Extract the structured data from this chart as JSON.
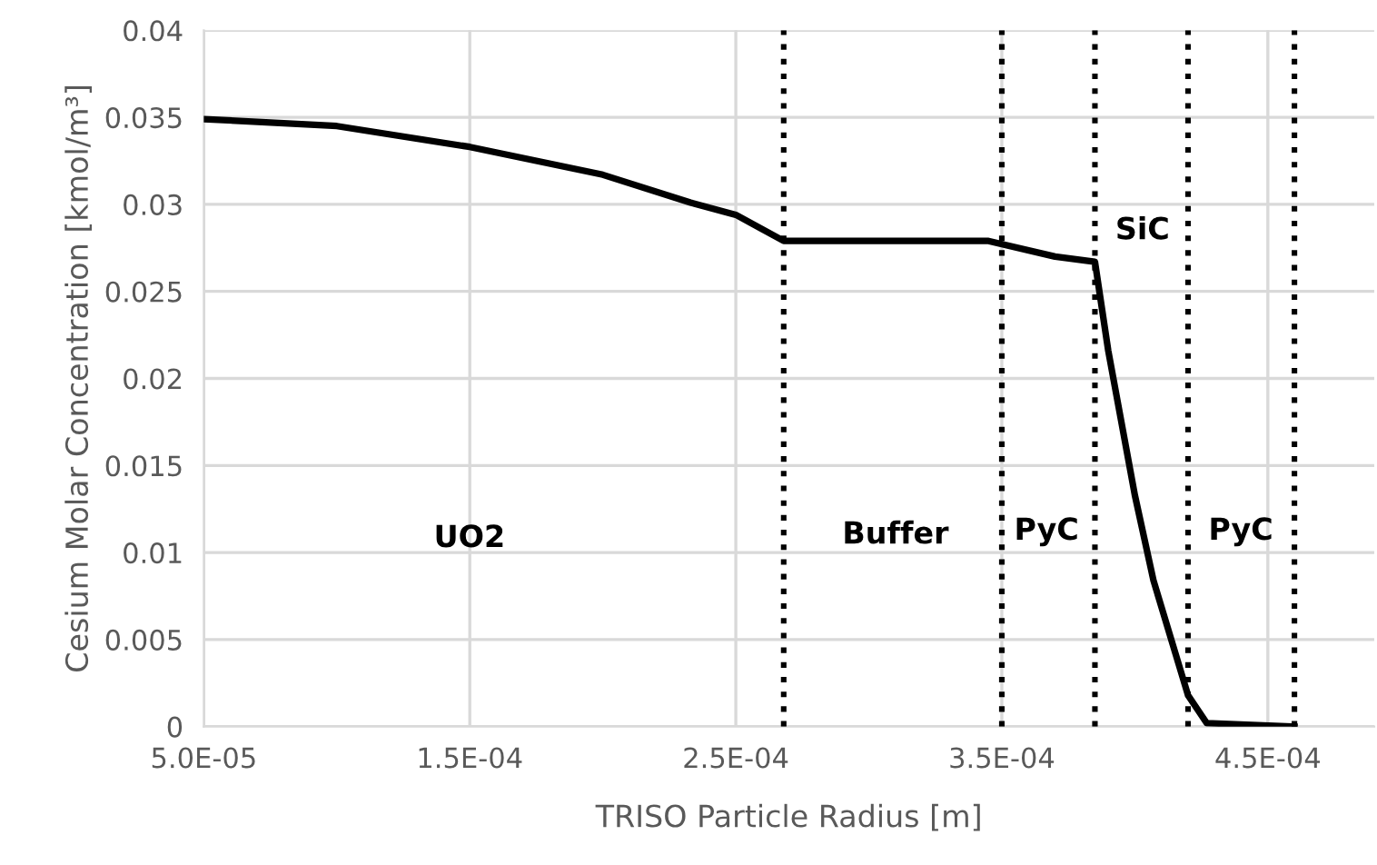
{
  "chart_data": {
    "type": "line",
    "xlabel": "TRISO Particle Radius [m]",
    "ylabel": "Cesium Molar Concentration [kmol/m³]",
    "x": [
      5e-05,
      0.0001,
      0.00015,
      0.0002,
      0.000233,
      0.00025,
      0.000268,
      0.000345,
      0.00037,
      0.000385,
      0.00039,
      0.0004,
      0.000407,
      0.00042,
      0.000427,
      0.00046
    ],
    "series": [
      {
        "color": "#000000",
        "values": [
          0.0349,
          0.0345,
          0.0333,
          0.0317,
          0.0301,
          0.0294,
          0.0279,
          0.0279,
          0.027,
          0.0267,
          0.0216,
          0.0133,
          0.0084,
          0.0018,
          0.0002,
          0.0
        ]
      }
    ],
    "xlim": [
      5e-05,
      0.00049
    ],
    "xticks": [
      {
        "value": 5e-05,
        "label": "5.0E-05"
      },
      {
        "value": 0.00015,
        "label": "1.5E-04"
      },
      {
        "value": 0.00025,
        "label": "2.5E-04"
      },
      {
        "value": 0.00035,
        "label": "3.5E-04"
      },
      {
        "value": 0.00045,
        "label": "4.5E-04"
      }
    ],
    "ylim": [
      0,
      0.04
    ],
    "yticks": [
      0,
      0.005,
      0.01,
      0.015,
      0.02,
      0.025,
      0.03,
      0.035,
      0.04
    ],
    "grid": true,
    "marker": "none",
    "line_style": "solid",
    "ref_lines": [
      {
        "axis": "x",
        "value": 0.000268,
        "color": "#000000",
        "line_style": "dotted"
      },
      {
        "axis": "x",
        "value": 0.00035,
        "color": "#000000",
        "line_style": "dotted"
      },
      {
        "axis": "x",
        "value": 0.000385,
        "color": "#000000",
        "line_style": "dotted"
      },
      {
        "axis": "x",
        "value": 0.00042,
        "color": "#000000",
        "line_style": "dotted"
      },
      {
        "axis": "x",
        "value": 0.00046,
        "color": "#000000",
        "line_style": "dotted"
      }
    ],
    "annotations": [
      "UO2",
      "Buffer",
      "PyC",
      "SiC",
      "PyC"
    ]
  }
}
